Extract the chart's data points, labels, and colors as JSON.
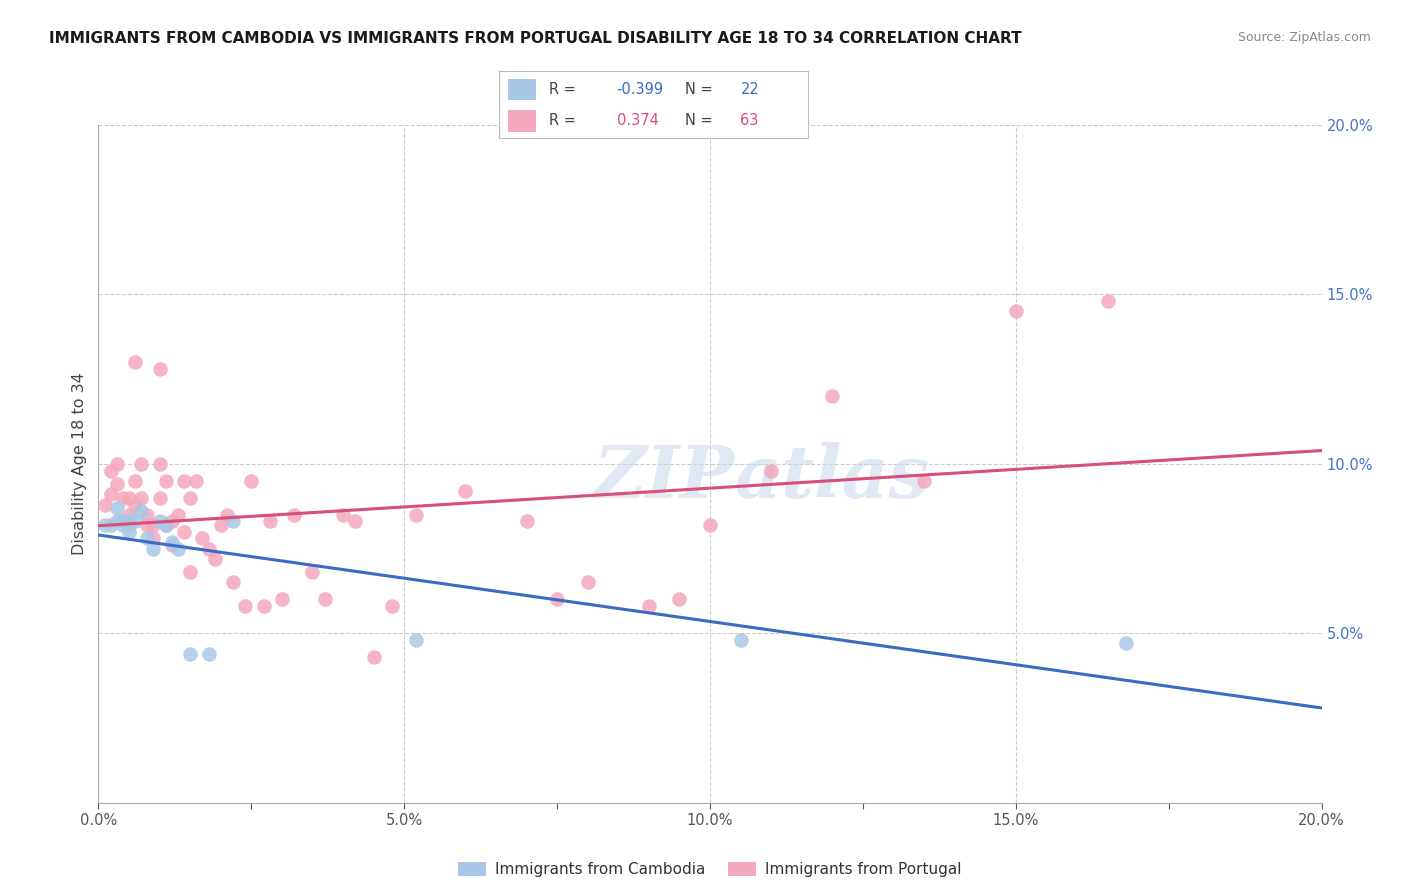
{
  "title": "IMMIGRANTS FROM CAMBODIA VS IMMIGRANTS FROM PORTUGAL DISABILITY AGE 18 TO 34 CORRELATION CHART",
  "source": "Source: ZipAtlas.com",
  "ylabel": "Disability Age 18 to 34",
  "legend_label1": "Immigrants from Cambodia",
  "legend_label2": "Immigrants from Portugal",
  "r1": "-0.399",
  "n1": "22",
  "r2": "0.374",
  "n2": "63",
  "color1": "#a8c8e8",
  "color2": "#f4a8be",
  "line_color1": "#3b6bc4",
  "line_color2": "#d94f78",
  "background_color": "#ffffff",
  "watermark": "ZIPatlas",
  "xlim": [
    0.0,
    0.2
  ],
  "ylim": [
    0.0,
    0.2
  ],
  "xticks": [
    0.0,
    0.025,
    0.05,
    0.075,
    0.1,
    0.125,
    0.15,
    0.175,
    0.2
  ],
  "yticks_right": [
    0.05,
    0.1,
    0.15,
    0.2
  ],
  "ytick_labels_right": [
    "5.0%",
    "10.0%",
    "15.0%",
    "20.0%"
  ],
  "cambodia_x": [
    0.001,
    0.002,
    0.003,
    0.003,
    0.004,
    0.004,
    0.005,
    0.005,
    0.006,
    0.007,
    0.008,
    0.009,
    0.01,
    0.011,
    0.012,
    0.013,
    0.015,
    0.018,
    0.022,
    0.052,
    0.105,
    0.168
  ],
  "cambodia_y": [
    0.082,
    0.082,
    0.087,
    0.083,
    0.082,
    0.083,
    0.08,
    0.083,
    0.083,
    0.086,
    0.078,
    0.075,
    0.083,
    0.082,
    0.077,
    0.075,
    0.044,
    0.044,
    0.083,
    0.048,
    0.048,
    0.047
  ],
  "portugal_x": [
    0.001,
    0.002,
    0.002,
    0.003,
    0.003,
    0.004,
    0.004,
    0.005,
    0.005,
    0.005,
    0.006,
    0.006,
    0.006,
    0.007,
    0.007,
    0.008,
    0.008,
    0.009,
    0.009,
    0.01,
    0.01,
    0.01,
    0.011,
    0.011,
    0.012,
    0.012,
    0.013,
    0.014,
    0.014,
    0.015,
    0.015,
    0.016,
    0.017,
    0.018,
    0.019,
    0.02,
    0.021,
    0.022,
    0.024,
    0.025,
    0.027,
    0.028,
    0.03,
    0.032,
    0.035,
    0.037,
    0.04,
    0.042,
    0.045,
    0.048,
    0.052,
    0.06,
    0.07,
    0.075,
    0.08,
    0.09,
    0.095,
    0.1,
    0.11,
    0.12,
    0.135,
    0.15,
    0.165
  ],
  "portugal_y": [
    0.088,
    0.098,
    0.091,
    0.094,
    0.1,
    0.09,
    0.083,
    0.085,
    0.09,
    0.082,
    0.13,
    0.095,
    0.088,
    0.09,
    0.1,
    0.085,
    0.082,
    0.082,
    0.078,
    0.128,
    0.1,
    0.09,
    0.095,
    0.082,
    0.083,
    0.076,
    0.085,
    0.08,
    0.095,
    0.09,
    0.068,
    0.095,
    0.078,
    0.075,
    0.072,
    0.082,
    0.085,
    0.065,
    0.058,
    0.095,
    0.058,
    0.083,
    0.06,
    0.085,
    0.068,
    0.06,
    0.085,
    0.083,
    0.043,
    0.058,
    0.085,
    0.092,
    0.083,
    0.06,
    0.065,
    0.058,
    0.06,
    0.082,
    0.098,
    0.12,
    0.095,
    0.145,
    0.148
  ]
}
